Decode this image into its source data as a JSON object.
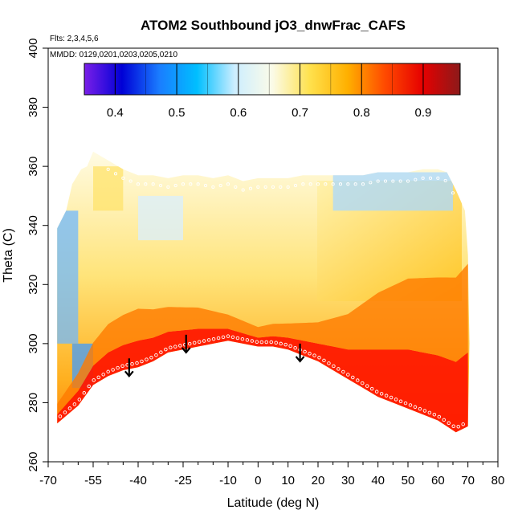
{
  "chart_data": {
    "type": "heatmap",
    "title": "ATOM2 Southbound jO3_dnwFrac_CAFS",
    "subtitle_flights": "Flts: 2,3,4,5,6",
    "subtitle_dates": "MMDD: 0129,0201,0203,0205,0210",
    "xlabel": "Latitude (deg N)",
    "ylabel": "Theta (C)",
    "xlim": [
      -70,
      80
    ],
    "ylim": [
      260,
      400
    ],
    "x_ticks": [
      -70,
      -55,
      -40,
      -25,
      -10,
      0,
      10,
      20,
      30,
      40,
      50,
      60,
      70,
      80
    ],
    "x_tick_labels": [
      "-70",
      "-55",
      "-40",
      "-25",
      "-10",
      "0",
      "10",
      "20",
      "30",
      "40",
      "50",
      "60",
      "70",
      "80"
    ],
    "x_minor_ticks": [
      -65,
      -60,
      -50,
      -45,
      -35,
      -30,
      -20,
      -15,
      -5,
      5,
      15,
      25,
      35,
      45,
      55,
      65,
      75
    ],
    "y_ticks": [
      260,
      280,
      300,
      320,
      340,
      360,
      380,
      400
    ],
    "y_tick_labels": [
      "260",
      "280",
      "300",
      "320",
      "340",
      "360",
      "380",
      "400"
    ],
    "colorbar": {
      "range": [
        0.35,
        0.96
      ],
      "ticks": [
        0.4,
        0.5,
        0.6,
        0.7,
        0.8,
        0.9
      ],
      "tick_labels": [
        "0.4",
        "0.5",
        "0.6",
        "0.7",
        "0.8",
        "0.9"
      ],
      "colors": [
        "#7a1fe8",
        "#0000d6",
        "#1a7dff",
        "#00bfff",
        "#cdeeff",
        "#fbfbe8",
        "#ffe14d",
        "#ffb000",
        "#ff4a00",
        "#e60000",
        "#8b1a1a"
      ]
    },
    "domain_top": [
      [
        -67,
        339
      ],
      [
        -64,
        345
      ],
      [
        -62,
        354
      ],
      [
        -59,
        359
      ],
      [
        -57,
        360
      ],
      [
        -55,
        365
      ],
      [
        -50,
        362
      ],
      [
        -45,
        359
      ],
      [
        -40,
        357
      ],
      [
        -35,
        357
      ],
      [
        -30,
        356
      ],
      [
        -25,
        357
      ],
      [
        -20,
        357
      ],
      [
        -15,
        356
      ],
      [
        -10,
        357
      ],
      [
        -5,
        355
      ],
      [
        0,
        356
      ],
      [
        5,
        356
      ],
      [
        10,
        356
      ],
      [
        15,
        357
      ],
      [
        20,
        357
      ],
      [
        25,
        357
      ],
      [
        30,
        357
      ],
      [
        35,
        357
      ],
      [
        40,
        358
      ],
      [
        45,
        358
      ],
      [
        50,
        358
      ],
      [
        55,
        359
      ],
      [
        60,
        359
      ],
      [
        63,
        358
      ],
      [
        66,
        352
      ],
      [
        69,
        345
      ],
      [
        70,
        330
      ],
      [
        70.5,
        300
      ]
    ],
    "domain_bottom": [
      [
        -67,
        273
      ],
      [
        -60,
        279
      ],
      [
        -55,
        286
      ],
      [
        -50,
        289
      ],
      [
        -45,
        291
      ],
      [
        -40,
        292
      ],
      [
        -35,
        294
      ],
      [
        -30,
        297
      ],
      [
        -25,
        298
      ],
      [
        -20,
        299
      ],
      [
        -15,
        300
      ],
      [
        -10,
        301
      ],
      [
        -5,
        300
      ],
      [
        0,
        299
      ],
      [
        5,
        299
      ],
      [
        10,
        298
      ],
      [
        15,
        296
      ],
      [
        20,
        294
      ],
      [
        25,
        291
      ],
      [
        30,
        288
      ],
      [
        35,
        285
      ],
      [
        40,
        282
      ],
      [
        45,
        280
      ],
      [
        50,
        278
      ],
      [
        55,
        276
      ],
      [
        60,
        274
      ],
      [
        63,
        272
      ],
      [
        66,
        270
      ],
      [
        70,
        272
      ],
      [
        70.5,
        300
      ]
    ],
    "red_band_thickness_theta": [
      [
        -67,
        3
      ],
      [
        -60,
        5
      ],
      [
        -50,
        8
      ],
      [
        -40,
        9
      ],
      [
        -30,
        7
      ],
      [
        -20,
        6
      ],
      [
        -10,
        4
      ],
      [
        0,
        3
      ],
      [
        10,
        4
      ],
      [
        20,
        6
      ],
      [
        30,
        10
      ],
      [
        40,
        16
      ],
      [
        50,
        20
      ],
      [
        60,
        22
      ],
      [
        70,
        25
      ]
    ],
    "arrows": [
      {
        "lat": -43,
        "theta_top": 295,
        "theta_bottom": 289
      },
      {
        "lat": -24,
        "theta_top": 303,
        "theta_bottom": 297
      },
      {
        "lat": 14,
        "theta_top": 300,
        "theta_bottom": 294
      }
    ]
  }
}
